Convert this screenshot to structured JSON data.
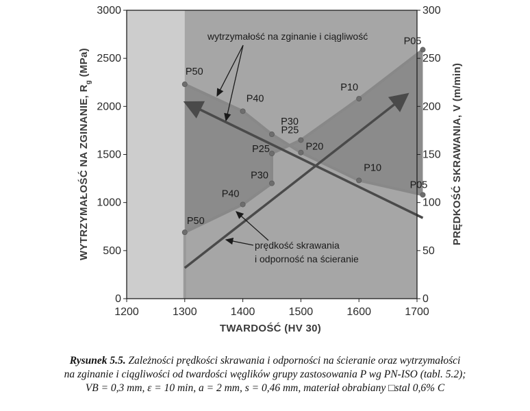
{
  "chart_data": {
    "type": "line",
    "xlabel": "TWARDOŚĆ (HV 30)",
    "ylabel_left": "WYTRZYMAŁOŚĆ NA ZGINANIE, R",
    "ylabel_left_subscript": "g",
    "ylabel_left_unit": "(MPa)",
    "ylabel_right": "PRĘDKOŚĆ SKRAWANIA, V (m/min)",
    "xlim": [
      1200,
      1700
    ],
    "ylim_left": [
      0,
      3000
    ],
    "ylim_right": [
      0,
      300
    ],
    "x_ticks": [
      "1200",
      "1300",
      "1400",
      "1500",
      "1600",
      "1700"
    ],
    "y_left_ticks": [
      "0",
      "500",
      "1000",
      "1500",
      "2000",
      "2500",
      "3000"
    ],
    "y_right_ticks": [
      "0",
      "50",
      "100",
      "150",
      "200",
      "250",
      "300"
    ],
    "series": [
      {
        "points": [
          {
            "x": 1300,
            "y": 2230,
            "label": "P50"
          },
          {
            "x": 1400,
            "y": 1950,
            "label": "P40"
          },
          {
            "x": 1450,
            "y": 1710,
            "label": "P30"
          },
          {
            "x": 1500,
            "y": 1520,
            "label": "P20"
          },
          {
            "x": 1600,
            "y": 1230,
            "label": "P10"
          },
          {
            "x": 1710,
            "y": 1080,
            "label": "P05"
          }
        ]
      },
      {
        "points": [
          {
            "x": 1300,
            "y": 690,
            "label": "P50"
          },
          {
            "x": 1400,
            "y": 980,
            "label": "P40"
          },
          {
            "x": 1450,
            "y": 1200,
            "label": "P30"
          },
          {
            "x": 1450,
            "y": 1510,
            "label": "P25"
          },
          {
            "x": 1500,
            "y": 1650,
            "label": "P25"
          },
          {
            "x": 1600,
            "y": 2080,
            "label": "P10"
          },
          {
            "x": 1710,
            "y": 2590,
            "label": "P05"
          }
        ]
      }
    ],
    "trend_arrows": [
      {
        "from": {
          "x": 1300,
          "y": 320
        },
        "to": {
          "x": 1680,
          "y": 2110
        }
      },
      {
        "from": {
          "x": 1710,
          "y": 840
        },
        "to": {
          "x": 1305,
          "y": 2030
        }
      }
    ],
    "annotations": {
      "upper": "wytrzymałość na zginanie i ciągliwość",
      "lower_line1": "prędkość skrawania",
      "lower_line2": "i odporność na ścieranie"
    },
    "colors": {
      "page_background": "#ffffff",
      "plot_background": "#cdcdcd",
      "band_right_fill": "#a6a6a6",
      "region_fill": "#8b8b8b",
      "series_line": "#888888",
      "arrow_line": "#4a4a4a",
      "text": "#1a1a1a"
    }
  },
  "caption": {
    "label": "Rysunek 5.5.",
    "line1": "Zależności prędkości skrawania i odporności na ścieranie oraz wytrzymałości",
    "line2": "na zginanie i ciągliwości od twardości węglików grupy zastosowania P wg PN-ISO (tabl. 5.2);",
    "line3": "VB = 0,3 mm, ε = 10 min, a = 2 mm, s = 0,46 mm, materiał obrabiany □stal 0,6% C"
  }
}
